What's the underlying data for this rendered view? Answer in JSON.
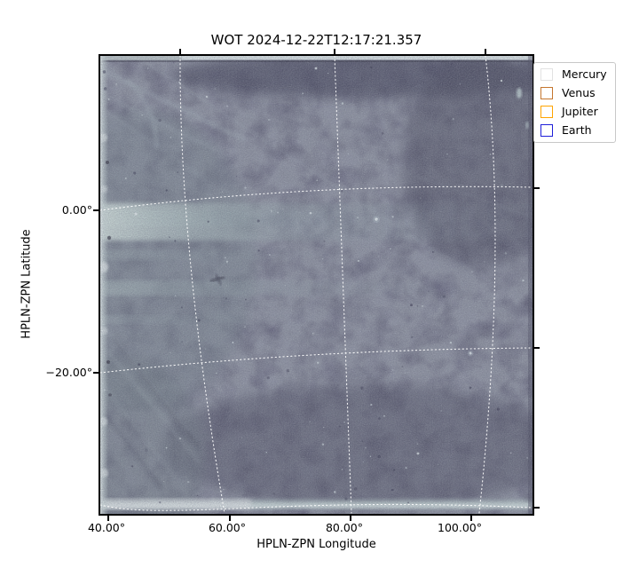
{
  "title": "WOT 2024-12-22T12:17:21.357",
  "axes": {
    "xlabel": "HPLN-ZPN Longitude",
    "ylabel": "HPLN-ZPN Latitude",
    "x_ticks": [
      "40.00°",
      "60.00°",
      "80.00°",
      "100.00°"
    ],
    "y_ticks": [
      "0.00°",
      "−20.00°"
    ]
  },
  "legend": {
    "items": [
      {
        "label": "Mercury",
        "color": "#e2e2e2"
      },
      {
        "label": "Venus",
        "color": "#c5762e"
      },
      {
        "label": "Jupiter",
        "color": "#ffa400"
      },
      {
        "label": "Earth",
        "color": "#1f1fd9"
      }
    ]
  },
  "colors": {
    "image_base": "#45445b",
    "streamer_band": "#cfe0da",
    "graticule": "#ffffff",
    "spine": "#000000",
    "figure_background": "#ffffff"
  },
  "chart_data": {
    "type": "heatmap",
    "title": "WOT 2024-12-22T12:17:21.357",
    "xlabel": "HPLN-ZPN Longitude",
    "ylabel": "HPLN-ZPN Latitude",
    "projection": "ZPN world-coordinate grid (curved dotted white graticule)",
    "xlim_deg": [
      38.9,
      112.6
    ],
    "ylim_deg": [
      -37.4,
      19.0
    ],
    "x_tick_values_deg": [
      40,
      60,
      80,
      100
    ],
    "y_tick_values_deg": [
      0,
      -20
    ],
    "grid": "white dotted curved meridians at 60/80/100 deg and parallels at 0/-20/-40 deg",
    "legend_position": "upper right, outside axes",
    "legend_entries": [
      "Mercury",
      "Venus",
      "Jupiter",
      "Earth"
    ],
    "description": "Wide-field heliospheric-imager frame: dark blue-grey noisy starfield; bright streamer band near 0 deg latitude extending from the left (sunward) edge and fading rightward; fainter band near -10 deg; bright instrument edge rows along top, bottom and left edges; faint diagonal streaks upper-left and lower-left; scattered stars; no planet markers visible inside the frame."
  }
}
